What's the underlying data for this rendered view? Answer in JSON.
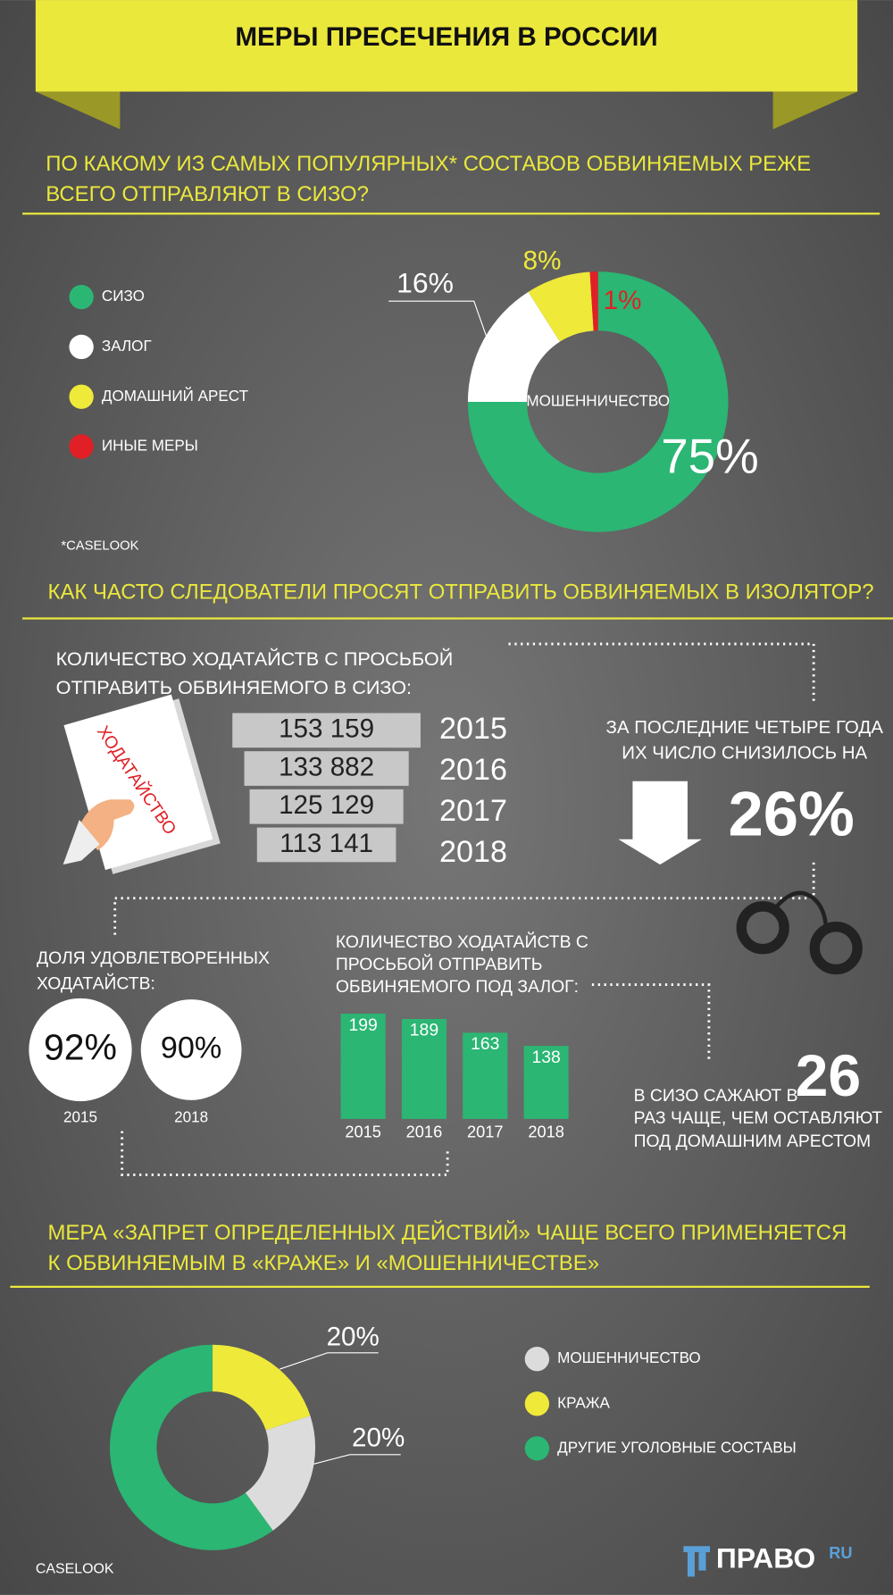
{
  "title": "МЕРЫ ПРЕСЕЧЕНИЯ В РОССИИ",
  "section1": {
    "heading": [
      "ПО КАКОМУ ИЗ САМЫХ ПОПУЛЯРНЫХ* СОСТАВОВ ОБВИНЯЕМЫХ РЕЖЕ",
      "ВСЕГО ОТПРАВЛЯЮТ В СИЗО?"
    ],
    "source": "*CASELOOK"
  },
  "section2": {
    "heading": [
      "КАК ЧАСТО СЛЕДОВАТЕЛИ ПРОСЯТ ОТПРАВИТЬ ОБВИНЯЕМЫХ В ИЗОЛЯТОР?"
    ],
    "document": "ХОДАТАЙСТВО",
    "callout1": {
      "lines": [
        "ЗА ПОСЛЕДНИЕ ЧЕТЫРЕ ГОДА",
        "ИХ ЧИСЛО СНИЗИЛОСЬ НА"
      ],
      "value": "26%"
    },
    "callout2": {
      "before": "В СИЗО САЖАЮТ В",
      "value": "26",
      "after": [
        "РАЗ ЧАЩЕ, ЧЕМ ОСТАВЛЯЮТ",
        "ПОД ДОМАШНИМ АРЕСТОМ"
      ]
    }
  },
  "section3": {
    "heading": [
      "МЕРА «ЗАПРЕТ ОПРЕДЕЛЕННЫХ ДЕЙСТВИЙ» ЧАЩЕ ВСЕГО ПРИМЕНЯЕТСЯ",
      "К ОБВИНЯЕМЫМ В «КРАЖЕ» И «МОШЕННИЧЕСТВЕ»"
    ],
    "source": "CASELOOK"
  },
  "logo": {
    "name": "ПРАВО",
    "suffix": "RU"
  },
  "chart_data": [
    {
      "type": "donut",
      "center_label": "МОШЕННИЧЕСТВО",
      "categories": [
        "СИЗО",
        "ЗАЛОГ",
        "ДОМАШНИЙ АРЕСТ",
        "ИНЫЕ МЕРЫ"
      ],
      "colors": [
        "#2bb673",
        "#ffffff",
        "#efe93a",
        "#e02026"
      ],
      "values": [
        75,
        16,
        8,
        1
      ],
      "value_labels": [
        "75%",
        "16%",
        "8%",
        "1%"
      ]
    },
    {
      "type": "hbar",
      "title": [
        "КОЛИЧЕСТВО ХОДАТАЙСТВ С ПРОСЬБОЙ",
        "ОТПРАВИТЬ ОБВИНЯЕМОГО В СИЗО:"
      ],
      "categories": [
        "2015",
        "2016",
        "2017",
        "2018"
      ],
      "color": "#c8c8c8",
      "values": [
        153159,
        133882,
        125129,
        113141
      ],
      "value_labels": [
        "153 159",
        "133 882",
        "125 129",
        "113 141"
      ]
    },
    {
      "type": "bubble",
      "title": [
        "ДОЛЯ УДОВЛЕТВОРЕННЫХ",
        "ХОДАТАЙСТВ:"
      ],
      "categories": [
        "2015",
        "2018"
      ],
      "color": "#ffffff",
      "values": [
        92,
        90
      ],
      "value_labels": [
        "92%",
        "90%"
      ]
    },
    {
      "type": "bar",
      "title": [
        "КОЛИЧЕСТВО ХОДАТАЙСТВ С",
        "ПРОСЬБОЙ ОТПРАВИТЬ",
        "ОБВИНЯЕМОГО ПОД ЗАЛОГ:"
      ],
      "categories": [
        "2015",
        "2016",
        "2017",
        "2018"
      ],
      "color": "#2bb673",
      "values": [
        199,
        189,
        163,
        138
      ]
    },
    {
      "type": "donut",
      "categories": [
        "МОШЕННИЧЕСТВО",
        "КРАЖА",
        "ДРУГИЕ УГОЛОВНЫЕ СОСТАВЫ"
      ],
      "colors": [
        "#dcdcdc",
        "#efe93a",
        "#2bb673"
      ],
      "values": [
        20,
        20,
        60
      ],
      "value_labels": [
        "20%",
        "20%",
        null
      ]
    }
  ]
}
